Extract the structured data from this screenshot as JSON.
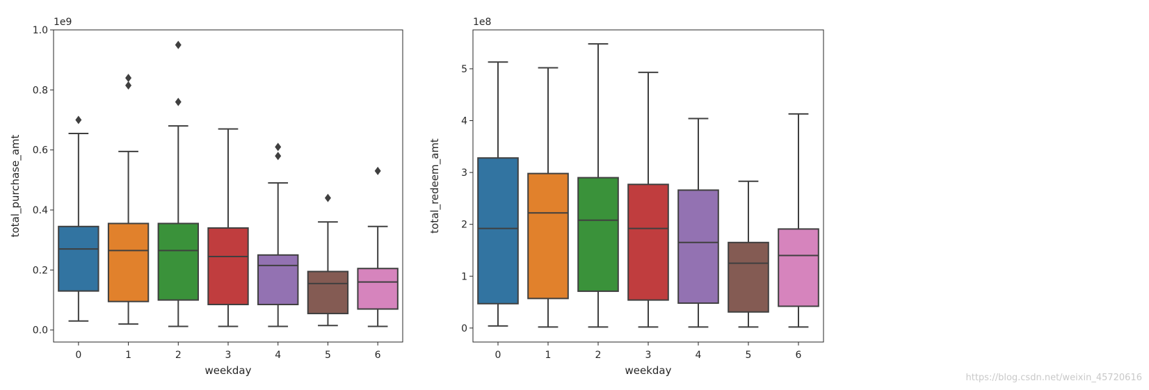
{
  "chart_data": [
    {
      "type": "box",
      "title": "",
      "xlabel": "weekday",
      "ylabel": "total_purchase_amt",
      "scale_label": "1e9",
      "ylim": [
        -0.04,
        1.0
      ],
      "yticks": [
        0.0,
        0.2,
        0.4,
        0.6,
        0.8,
        1.0
      ],
      "ytick_labels": [
        "0.0",
        "0.2",
        "0.4",
        "0.6",
        "0.8",
        "1.0"
      ],
      "categories": [
        "0",
        "1",
        "2",
        "3",
        "4",
        "5",
        "6"
      ],
      "boxes": [
        {
          "category": "0",
          "whisker_low": 0.03,
          "q1": 0.13,
          "median": 0.27,
          "q3": 0.345,
          "whisker_high": 0.655,
          "outliers": [
            0.7
          ]
        },
        {
          "category": "1",
          "whisker_low": 0.02,
          "q1": 0.095,
          "median": 0.265,
          "q3": 0.355,
          "whisker_high": 0.595,
          "outliers": [
            0.815,
            0.84
          ]
        },
        {
          "category": "2",
          "whisker_low": 0.012,
          "q1": 0.1,
          "median": 0.265,
          "q3": 0.355,
          "whisker_high": 0.68,
          "outliers": [
            0.76,
            0.95
          ]
        },
        {
          "category": "3",
          "whisker_low": 0.012,
          "q1": 0.085,
          "median": 0.245,
          "q3": 0.34,
          "whisker_high": 0.67,
          "outliers": []
        },
        {
          "category": "4",
          "whisker_low": 0.012,
          "q1": 0.085,
          "median": 0.215,
          "q3": 0.25,
          "whisker_high": 0.49,
          "outliers": [
            0.58,
            0.61
          ]
        },
        {
          "category": "5",
          "whisker_low": 0.015,
          "q1": 0.055,
          "median": 0.155,
          "q3": 0.195,
          "whisker_high": 0.36,
          "outliers": [
            0.44
          ]
        },
        {
          "category": "6",
          "whisker_low": 0.012,
          "q1": 0.07,
          "median": 0.16,
          "q3": 0.205,
          "whisker_high": 0.345,
          "outliers": [
            0.53
          ]
        }
      ]
    },
    {
      "type": "box",
      "title": "",
      "xlabel": "weekday",
      "ylabel": "total_redeem_amt",
      "scale_label": "1e8",
      "ylim": [
        -0.27,
        5.75
      ],
      "yticks": [
        0,
        1,
        2,
        3,
        4,
        5
      ],
      "ytick_labels": [
        "0",
        "1",
        "2",
        "3",
        "4",
        "5"
      ],
      "categories": [
        "0",
        "1",
        "2",
        "3",
        "4",
        "5",
        "6"
      ],
      "boxes": [
        {
          "category": "0",
          "whisker_low": 0.04,
          "q1": 0.47,
          "median": 1.92,
          "q3": 3.28,
          "whisker_high": 5.13,
          "outliers": []
        },
        {
          "category": "1",
          "whisker_low": 0.02,
          "q1": 0.57,
          "median": 2.22,
          "q3": 2.98,
          "whisker_high": 5.02,
          "outliers": []
        },
        {
          "category": "2",
          "whisker_low": 0.02,
          "q1": 0.71,
          "median": 2.08,
          "q3": 2.9,
          "whisker_high": 5.48,
          "outliers": []
        },
        {
          "category": "3",
          "whisker_low": 0.02,
          "q1": 0.54,
          "median": 1.92,
          "q3": 2.77,
          "whisker_high": 4.93,
          "outliers": []
        },
        {
          "category": "4",
          "whisker_low": 0.02,
          "q1": 0.48,
          "median": 1.65,
          "q3": 2.66,
          "whisker_high": 4.04,
          "outliers": []
        },
        {
          "category": "5",
          "whisker_low": 0.02,
          "q1": 0.31,
          "median": 1.25,
          "q3": 1.65,
          "whisker_high": 2.83,
          "outliers": []
        },
        {
          "category": "6",
          "whisker_low": 0.02,
          "q1": 0.42,
          "median": 1.4,
          "q3": 1.91,
          "whisker_high": 4.13,
          "outliers": []
        }
      ]
    }
  ],
  "palette": [
    "#3274a1",
    "#e1812c",
    "#3a923a",
    "#c03d3e",
    "#9372b2",
    "#845b53",
    "#d684bd"
  ],
  "line_color": "#3f3f3f",
  "watermark": "https://blog.csdn.net/weixin_45720616"
}
